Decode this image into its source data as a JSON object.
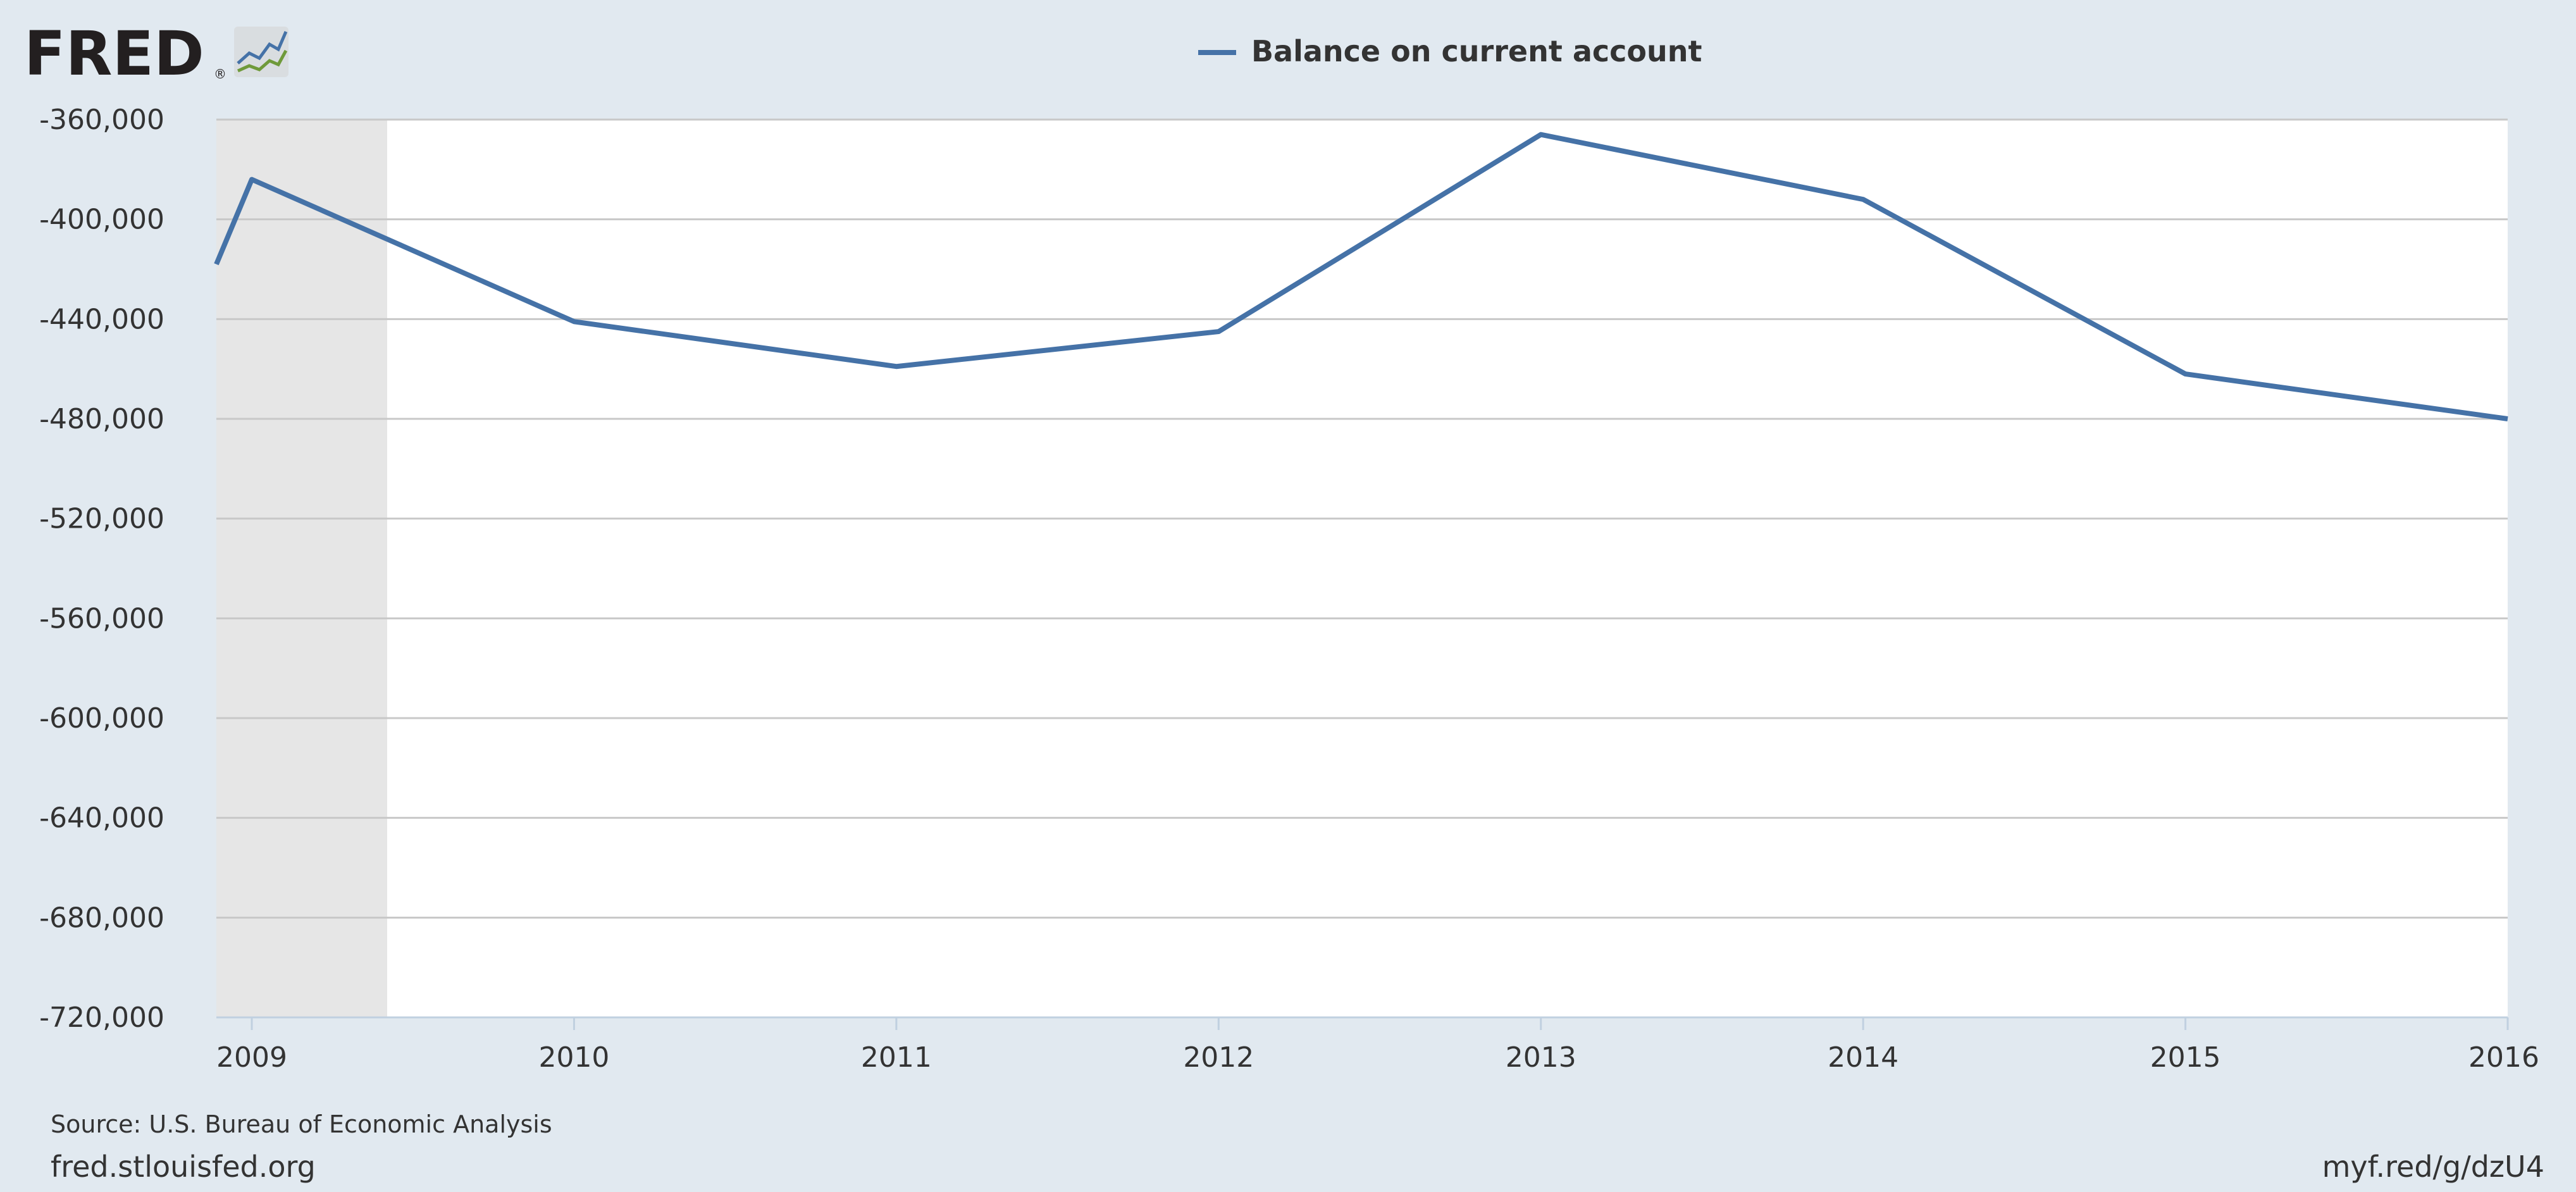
{
  "logo": {
    "text": "FRED",
    "registered": "®"
  },
  "source": "Source: U.S. Bureau of Economic Analysis",
  "footer": {
    "left": "fred.stlouisfed.org",
    "right": "myf.red/g/dzU4"
  },
  "chart_data": {
    "type": "line",
    "title": "",
    "xlabel": "",
    "ylabel": "",
    "legend": [
      "Balance on current account"
    ],
    "legend_position": "top-center",
    "grid": true,
    "xlim": [
      2008.89,
      2016.0
    ],
    "ylim": [
      -720000,
      -360000
    ],
    "x_ticks": [
      2009,
      2010,
      2011,
      2012,
      2013,
      2014,
      2015,
      2016
    ],
    "y_ticks": [
      -360000,
      -400000,
      -440000,
      -480000,
      -520000,
      -560000,
      -600000,
      -640000,
      -680000,
      -720000
    ],
    "y_tick_labels": [
      "-360,000",
      "-400,000",
      "-440,000",
      "-480,000",
      "-520,000",
      "-560,000",
      "-600,000",
      "-640,000",
      "-680,000",
      "-720,000"
    ],
    "recession": {
      "start": 2008.89,
      "end": 2009.42
    },
    "series": [
      {
        "name": "Balance on current account",
        "color": "#4572a7",
        "x": [
          2008.89,
          2009,
          2010,
          2011,
          2012,
          2013,
          2014,
          2015,
          2016
        ],
        "y": [
          -418000,
          -384000,
          -441000,
          -459000,
          -445000,
          -366000,
          -392000,
          -462000,
          -480000
        ]
      }
    ]
  },
  "colors": {
    "background": "#e1e9f0",
    "plot_background": "#ffffff",
    "gridline": "#c8c8c8",
    "recession_shade": "#e6e6e6",
    "line": "#4572a7"
  }
}
